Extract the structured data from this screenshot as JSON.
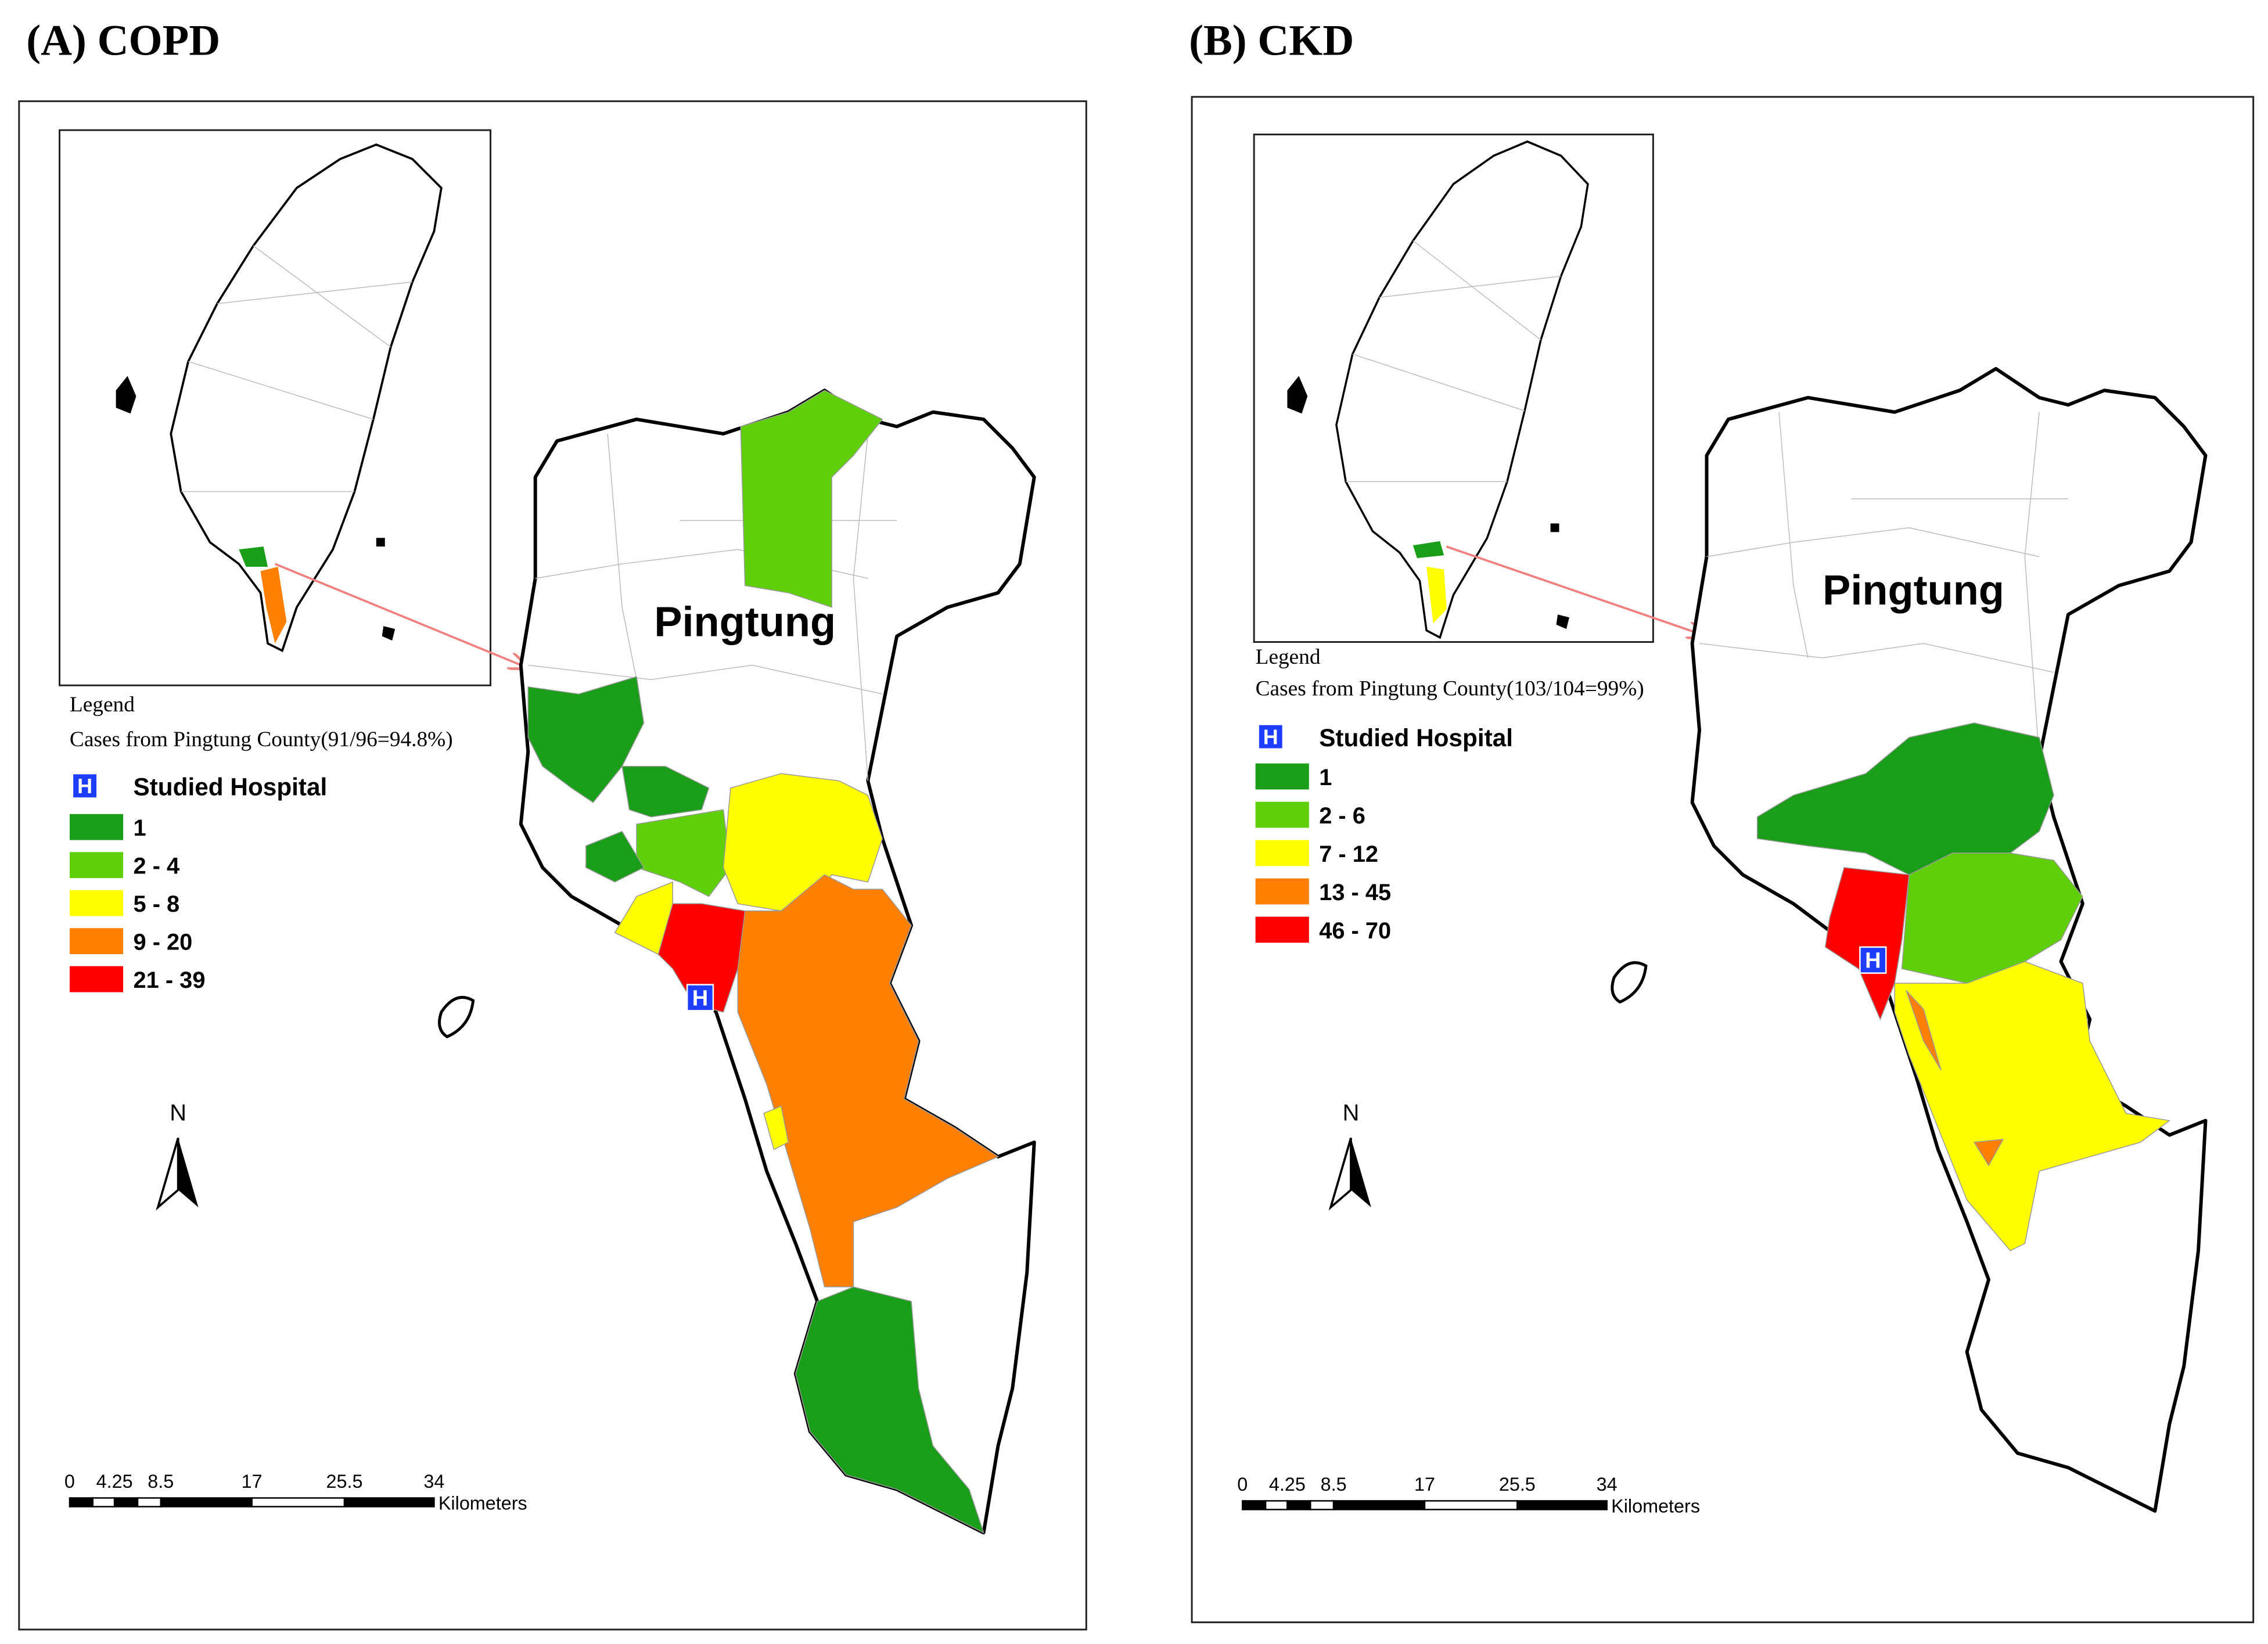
{
  "panels": [
    {
      "title": "(A) COPD",
      "map_label": "Pingtung",
      "legend": {
        "title": "Legend",
        "subtitle": "Cases from Pingtung County(91/96=94.8%)",
        "hospital": "Studied Hospital",
        "hospital_icon": "H",
        "items": [
          {
            "label": "1",
            "color": "#1a9e1a"
          },
          {
            "label": "2 - 4",
            "color": "#5fcf0a"
          },
          {
            "label": "5 - 8",
            "color": "#ffff00"
          },
          {
            "label": "9 - 20",
            "color": "#ff8000"
          },
          {
            "label": "21 - 39",
            "color": "#ff0000"
          }
        ]
      },
      "north": "N",
      "scale": {
        "ticks": [
          "0",
          "4.25",
          "8.5",
          "17",
          "25.5",
          "34"
        ],
        "unit": "Kilometers"
      }
    },
    {
      "title": "(B) CKD",
      "map_label": "Pingtung",
      "legend": {
        "title": "Legend",
        "subtitle": "Cases from Pingtung County(103/104=99%)",
        "hospital": "Studied Hospital",
        "hospital_icon": "H",
        "items": [
          {
            "label": "1",
            "color": "#1a9e1a"
          },
          {
            "label": "2 - 6",
            "color": "#5fcf0a"
          },
          {
            "label": "7 - 12",
            "color": "#ffff00"
          },
          {
            "label": "13 - 45",
            "color": "#ff8000"
          },
          {
            "label": "46 - 70",
            "color": "#ff0000"
          }
        ]
      },
      "north": "N",
      "scale": {
        "ticks": [
          "0",
          "4.25",
          "8.5",
          "17",
          "25.5",
          "34"
        ],
        "unit": "Kilometers"
      }
    }
  ]
}
